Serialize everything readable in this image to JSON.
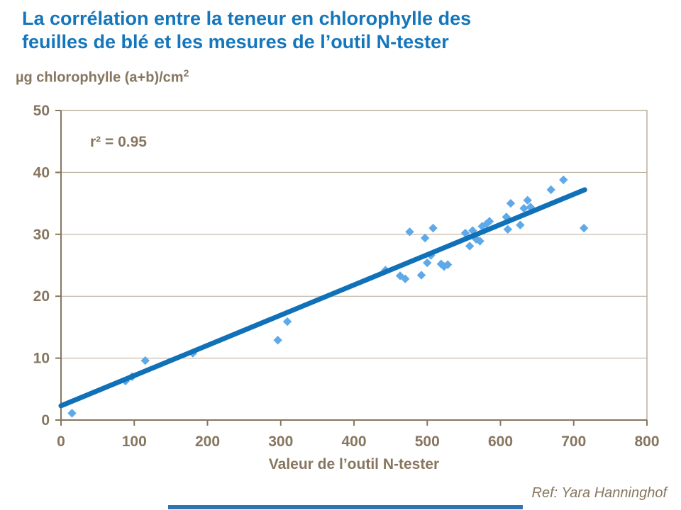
{
  "slide": {
    "title_line1": "La corrélation entre la teneur en chlorophylle des",
    "title_line2": "feuilles de blé et les mesures de l’outil N-tester",
    "reference": "Ref: Yara Hanninghof"
  },
  "colors": {
    "title": "#1476BC",
    "point": "#5FA9E9",
    "trend": "#1070B8",
    "brown_text": "#87765F",
    "grid": "#B5A897",
    "bottom_bar": "#2E74B5"
  },
  "chart_data": {
    "type": "scatter",
    "title": "La corrélation entre la teneur en chlorophylle des feuilles de blé et les mesures de l’outil N-tester",
    "xlabel": "Valeur de l’outil N-tester",
    "ylabel_base": "µg chlorophylle (a+b)/cm",
    "ylabel_sup": "2",
    "annotation": "r² = 0.95",
    "r_squared": 0.95,
    "xlim": [
      0,
      800
    ],
    "ylim": [
      0,
      50
    ],
    "x_ticks": [
      0,
      100,
      200,
      300,
      400,
      500,
      600,
      700,
      800
    ],
    "y_ticks": [
      0,
      10,
      20,
      30,
      40,
      50
    ],
    "grid": "horizontal gridlines at each y tick",
    "legend": "none",
    "marker": "diamond",
    "points": [
      [
        15,
        1.1
      ],
      [
        88,
        6.3
      ],
      [
        97,
        7.0
      ],
      [
        115,
        9.6
      ],
      [
        180,
        10.8
      ],
      [
        296,
        12.9
      ],
      [
        309,
        15.9
      ],
      [
        443,
        24.2
      ],
      [
        463,
        23.3
      ],
      [
        470,
        22.8
      ],
      [
        476,
        30.4
      ],
      [
        492,
        23.4
      ],
      [
        497,
        29.4
      ],
      [
        500,
        25.4
      ],
      [
        505,
        26.6
      ],
      [
        508,
        31.0
      ],
      [
        519,
        25.2
      ],
      [
        523,
        24.8
      ],
      [
        528,
        25.1
      ],
      [
        552,
        30.2
      ],
      [
        558,
        28.1
      ],
      [
        562,
        30.6
      ],
      [
        567,
        29.2
      ],
      [
        572,
        28.9
      ],
      [
        575,
        31.3
      ],
      [
        581,
        31.7
      ],
      [
        585,
        32.1
      ],
      [
        608,
        32.8
      ],
      [
        610,
        30.8
      ],
      [
        614,
        35.0
      ],
      [
        627,
        31.5
      ],
      [
        632,
        34.2
      ],
      [
        637,
        35.5
      ],
      [
        641,
        34.4
      ],
      [
        669,
        37.2
      ],
      [
        686,
        38.8
      ],
      [
        714,
        31.0
      ]
    ],
    "trendline": {
      "x1": 0,
      "y1": 2.3,
      "x2": 715,
      "y2": 37.2
    }
  }
}
